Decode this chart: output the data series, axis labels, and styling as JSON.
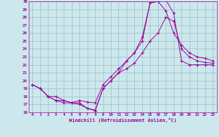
{
  "xlabel": "Windchill (Refroidissement éolien,°C)",
  "xlim": [
    -0.5,
    23.5
  ],
  "ylim": [
    16,
    30
  ],
  "xticks": [
    0,
    1,
    2,
    3,
    4,
    5,
    6,
    7,
    8,
    9,
    10,
    11,
    12,
    13,
    14,
    15,
    16,
    17,
    18,
    19,
    20,
    21,
    22,
    23
  ],
  "yticks": [
    16,
    17,
    18,
    19,
    20,
    21,
    22,
    23,
    24,
    25,
    26,
    27,
    28,
    29,
    30
  ],
  "bg_color": "#cce8ec",
  "line_color": "#990099",
  "grid_color": "#99bbcc",
  "line1_x": [
    0,
    1,
    2,
    3,
    4,
    5,
    6,
    7,
    8,
    9,
    10,
    11,
    12,
    13,
    14,
    15,
    16,
    17,
    18,
    19,
    20,
    21,
    22,
    23
  ],
  "line1_y": [
    19.5,
    19.0,
    18.0,
    17.5,
    17.5,
    17.2,
    17.2,
    16.5,
    16.2,
    19.0,
    20.0,
    21.0,
    21.5,
    22.2,
    23.5,
    25.0,
    26.0,
    28.0,
    27.5,
    24.0,
    23.0,
    22.5,
    22.3,
    22.2
  ],
  "line2_x": [
    0,
    1,
    2,
    3,
    4,
    5,
    6,
    7,
    8,
    9,
    10,
    11,
    12,
    13,
    14,
    15,
    16,
    17,
    18,
    19,
    20,
    21,
    22,
    23
  ],
  "line2_y": [
    19.5,
    19.0,
    18.0,
    17.5,
    17.2,
    17.2,
    17.0,
    16.5,
    16.3,
    19.0,
    20.0,
    21.0,
    22.5,
    23.5,
    25.5,
    29.8,
    30.0,
    30.2,
    28.5,
    22.5,
    22.0,
    22.0,
    22.0,
    22.0
  ],
  "line3_x": [
    0,
    1,
    2,
    3,
    4,
    5,
    6,
    7,
    8,
    9,
    10,
    11,
    12,
    13,
    14,
    15,
    16,
    17,
    18,
    19,
    20,
    21,
    22,
    23
  ],
  "line3_y": [
    19.5,
    19.0,
    18.0,
    18.0,
    17.5,
    17.2,
    17.5,
    17.3,
    17.2,
    19.5,
    20.5,
    21.5,
    22.5,
    23.5,
    25.0,
    29.8,
    30.0,
    28.8,
    26.0,
    24.5,
    23.5,
    23.0,
    22.8,
    22.5
  ]
}
